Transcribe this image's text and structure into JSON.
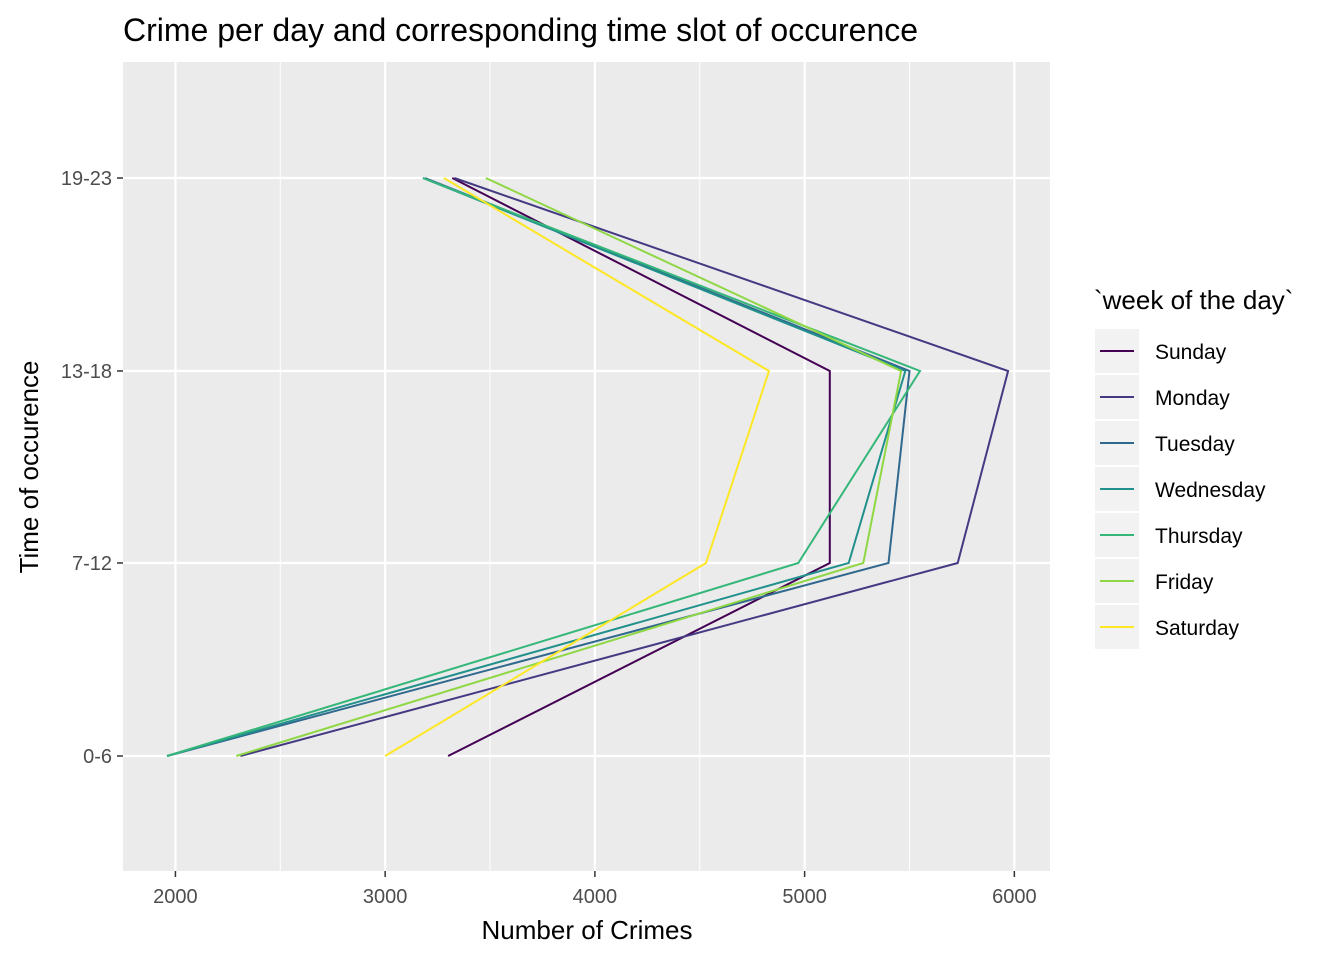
{
  "chart_data": {
    "type": "line",
    "title": "Crime per day and corresponding time slot of occurence",
    "xlabel": "Number of Crimes",
    "ylabel": "Time of occurence",
    "xlim": [
      1750,
      6170
    ],
    "x_ticks": [
      2000,
      3000,
      4000,
      5000,
      6000
    ],
    "categories": [
      "0-6",
      "7-12",
      "13-18",
      "19-23"
    ],
    "grid": true,
    "legend": {
      "title": "`week of the day`",
      "placement": "right"
    },
    "series": [
      {
        "name": "Sunday",
        "color": "#440154",
        "values": [
          3300,
          5120,
          5120,
          3320
        ]
      },
      {
        "name": "Monday",
        "color": "#443A83",
        "values": [
          2310,
          5730,
          5970,
          3330
        ]
      },
      {
        "name": "Tuesday",
        "color": "#31688E",
        "values": [
          1960,
          5400,
          5500,
          3190
        ]
      },
      {
        "name": "Wednesday",
        "color": "#21908C",
        "values": [
          1960,
          5210,
          5480,
          3180
        ]
      },
      {
        "name": "Thursday",
        "color": "#35B779",
        "values": [
          1960,
          4970,
          5550,
          3180
        ]
      },
      {
        "name": "Friday",
        "color": "#8FD744",
        "values": [
          2290,
          5280,
          5460,
          3480
        ]
      },
      {
        "name": "Saturday",
        "color": "#FDE725",
        "values": [
          3000,
          4530,
          4830,
          3280
        ]
      }
    ]
  }
}
